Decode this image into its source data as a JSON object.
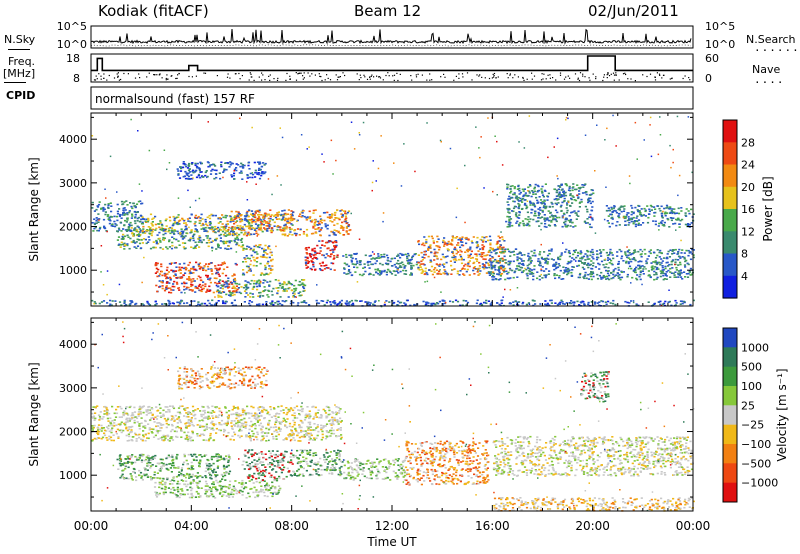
{
  "header": {
    "station": "Kodiak (fitACF)",
    "beam": "Beam 12",
    "date": "02/Jun/2011"
  },
  "left_labels": {
    "nsky": "N.Sky",
    "freq": "Freq.",
    "freq_unit": "[MHz]",
    "cpid": "CPID"
  },
  "right_labels": {
    "nsearch": "N.Search",
    "nave": "Nave"
  },
  "cpid_text": "normalsound (fast) 157 RF",
  "colors": {
    "frame": "#000000",
    "background": "#ffffff",
    "ground_scatter": "#c8c8c8"
  },
  "chart_data": [
    {
      "type": "line",
      "name": "noise-panel",
      "yticks_left": [
        "10^5",
        "10^0"
      ],
      "yticks_right": [
        "10^5",
        "10^0"
      ],
      "xlim": [
        0,
        24
      ]
    },
    {
      "type": "line",
      "name": "frequency-nave-panel",
      "yticks_left": [
        "18",
        "8"
      ],
      "yticks_right": [
        "60",
        "0"
      ],
      "frequency_steps": [
        {
          "x": [
            0.0,
            0.25
          ],
          "y": 12
        },
        {
          "x": [
            0.25,
            0.45
          ],
          "y": 17
        },
        {
          "x": [
            0.45,
            3.9
          ],
          "y": 12
        },
        {
          "x": [
            3.9,
            4.25
          ],
          "y": 14
        },
        {
          "x": [
            4.25,
            19.8
          ],
          "y": 12
        },
        {
          "x": [
            19.8,
            20.9
          ],
          "y": 18
        },
        {
          "x": [
            20.9,
            24.0
          ],
          "y": 12
        }
      ],
      "ylim": [
        8,
        18
      ],
      "xlim": [
        0,
        24
      ]
    },
    {
      "type": "heatmap",
      "name": "power-panel",
      "ylabel": "Slant Range [km]",
      "yticks": [
        1000,
        2000,
        3000,
        4000
      ],
      "ylim": [
        180,
        4600
      ],
      "xlim": [
        0,
        24
      ],
      "colorbar": {
        "label": "Power [dB]",
        "ticks": [
          "4",
          "8",
          "12",
          "16",
          "20",
          "24",
          "28"
        ],
        "colors": [
          "#1020e0",
          "#2858c8",
          "#3a8a6e",
          "#49a94a",
          "#e6c21c",
          "#f28a12",
          "#ee4a14",
          "#e01010"
        ]
      },
      "echo_regions": [
        {
          "t0": 0.0,
          "t1": 2.0,
          "r0": 1900,
          "r1": 2600,
          "level": 2
        },
        {
          "t0": 1.0,
          "t1": 6.0,
          "r0": 1500,
          "r1": 2000,
          "level": 3
        },
        {
          "t0": 2.0,
          "t1": 8.0,
          "r0": 1900,
          "r1": 2300,
          "level": 4
        },
        {
          "t0": 5.5,
          "t1": 10.3,
          "r0": 1800,
          "r1": 2400,
          "level": 5
        },
        {
          "t0": 2.5,
          "t1": 5.8,
          "r0": 500,
          "r1": 1200,
          "level": 6
        },
        {
          "t0": 5.0,
          "t1": 8.5,
          "r0": 400,
          "r1": 800,
          "level": 3
        },
        {
          "t0": 6.0,
          "t1": 7.2,
          "r0": 900,
          "r1": 1600,
          "level": 4
        },
        {
          "t0": 8.5,
          "t1": 9.8,
          "r0": 1000,
          "r1": 1700,
          "level": 7
        },
        {
          "t0": 10.0,
          "t1": 13.0,
          "r0": 900,
          "r1": 1400,
          "level": 2
        },
        {
          "t0": 13.0,
          "t1": 16.5,
          "r0": 900,
          "r1": 1800,
          "level": 5
        },
        {
          "t0": 15.8,
          "t1": 24.0,
          "r0": 800,
          "r1": 1500,
          "level": 2
        },
        {
          "t0": 16.5,
          "t1": 20.0,
          "r0": 2000,
          "r1": 3000,
          "level": 2
        },
        {
          "t0": 3.4,
          "t1": 7.0,
          "r0": 3100,
          "r1": 3500,
          "level": 1
        },
        {
          "t0": 20.5,
          "t1": 24.0,
          "r0": 2000,
          "r1": 2500,
          "level": 2
        },
        {
          "t0": 0.0,
          "t1": 24.0,
          "r0": 200,
          "r1": 330,
          "level": 1
        }
      ]
    },
    {
      "type": "heatmap",
      "name": "velocity-panel",
      "ylabel": "Slant Range [km]",
      "yticks": [
        1000,
        2000,
        3000,
        4000
      ],
      "ylim": [
        180,
        4600
      ],
      "xlim": [
        0,
        24
      ],
      "xticks": [
        "00:00",
        "04:00",
        "08:00",
        "12:00",
        "16:00",
        "20:00",
        "00:00"
      ],
      "xlabel": "Time UT",
      "colorbar": {
        "label": "Velocity [m s⁻¹]",
        "ticks": [
          "1000",
          "500",
          "100",
          "25",
          "−25",
          "−100",
          "−500",
          "−1000"
        ],
        "colors": [
          "#2048c0",
          "#2e7a58",
          "#3c9a3c",
          "#86c83a",
          "#c8c8c8",
          "#f0b818",
          "#f28012",
          "#ee4812",
          "#e01010"
        ]
      },
      "echo_regions": [
        {
          "t0": 0.0,
          "t1": 10.0,
          "r0": 1800,
          "r1": 2600,
          "level": 4
        },
        {
          "t0": 1.0,
          "t1": 5.5,
          "r0": 900,
          "r1": 1500,
          "level": 2
        },
        {
          "t0": 2.5,
          "t1": 7.5,
          "r0": 500,
          "r1": 900,
          "level": 3
        },
        {
          "t0": 6.0,
          "t1": 8.0,
          "r0": 900,
          "r1": 1600,
          "level": 1
        },
        {
          "t0": 8.0,
          "t1": 10.0,
          "r0": 1000,
          "r1": 1600,
          "level": 2
        },
        {
          "t0": 10.0,
          "t1": 12.5,
          "r0": 900,
          "r1": 1400,
          "level": 3
        },
        {
          "t0": 12.5,
          "t1": 15.8,
          "r0": 800,
          "r1": 1800,
          "level": 6
        },
        {
          "t0": 16.0,
          "t1": 24.0,
          "r0": 1000,
          "r1": 1900,
          "level": 4
        },
        {
          "t0": 16.0,
          "t1": 24.0,
          "r0": 200,
          "r1": 500,
          "level": 5
        },
        {
          "t0": 3.4,
          "t1": 7.0,
          "r0": 3000,
          "r1": 3500,
          "level": 6
        },
        {
          "t0": 19.5,
          "t1": 20.6,
          "r0": 2700,
          "r1": 3400,
          "level": 1
        }
      ]
    }
  ]
}
